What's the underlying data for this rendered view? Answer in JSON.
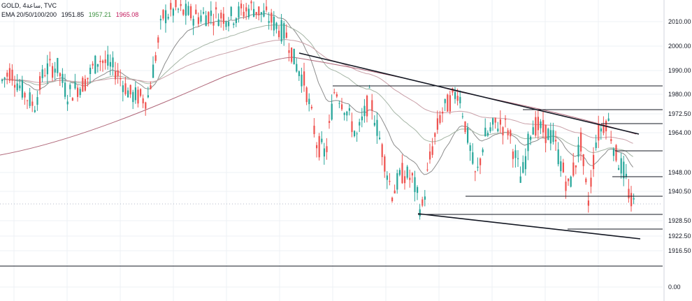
{
  "header": {
    "line1": "GOLD, 4ساعة, TVC",
    "ema_label": "EMA 20/50/100/200",
    "ema_values": [
      "1951.85",
      "1957.21",
      "1965.08"
    ],
    "ema_value_colors": [
      "#131722",
      "#388e3c",
      "#c2185b"
    ]
  },
  "chart_data": {
    "type": "candlestick",
    "y_axis_ticks": [
      "2010.00",
      "2000.00",
      "1990.00",
      "1980.00",
      "1972.50",
      "1964.00",
      "1948.00",
      "1940.50",
      "1928.50",
      "1922.50",
      "1916.50",
      "0.00"
    ],
    "levels": [
      {
        "value": "1983.68",
        "kind": "resistance"
      },
      {
        "value": "1973.59",
        "kind": "resistance"
      },
      {
        "value": "1967.70",
        "kind": "resistance"
      },
      {
        "value": "1956.69",
        "kind": "resistance"
      },
      {
        "value": "1946.47",
        "kind": "support"
      },
      {
        "value": "1938.76",
        "kind": "support"
      },
      {
        "value": "1935.41",
        "kind": "current-price"
      },
      {
        "value": "1931.09",
        "kind": "support"
      },
      {
        "value": "1925.15",
        "kind": "support"
      },
      {
        "value": "1910.40",
        "kind": "support"
      }
    ],
    "current_price": 1935.41,
    "colors": {
      "up": "#26a69a",
      "down": "#ef5350",
      "ema20": "#8d8d8d",
      "ema50": "#a5b5a5",
      "ema100": "#c9a0a8",
      "ema200": "#b0687a",
      "trend": "#131722",
      "current": "#1e3ea8"
    }
  }
}
